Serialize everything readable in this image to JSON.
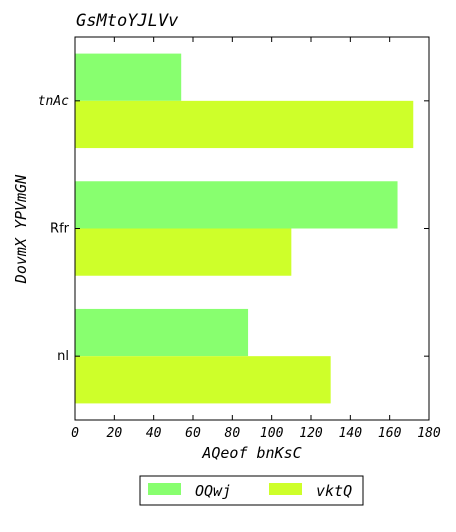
{
  "chart_data": {
    "type": "bar",
    "orientation": "horizontal",
    "title": "GsMtoYJLVv",
    "xlabel": "AQeof bnKsC",
    "ylabel": "DovmX YPVmGN",
    "categories": [
      "nl",
      "Rfr",
      "tnAc"
    ],
    "series": [
      {
        "name": "OQwj",
        "color": "#88ff6f",
        "values": [
          88,
          164,
          54
        ]
      },
      {
        "name": "vktQ",
        "color": "#ceff2a",
        "values": [
          130,
          110,
          172
        ]
      }
    ],
    "xlim": [
      0,
      180
    ],
    "xticks": [
      0,
      20,
      40,
      60,
      80,
      100,
      120,
      140,
      160,
      180
    ],
    "grid": false,
    "legend_position": "bottom-center"
  }
}
